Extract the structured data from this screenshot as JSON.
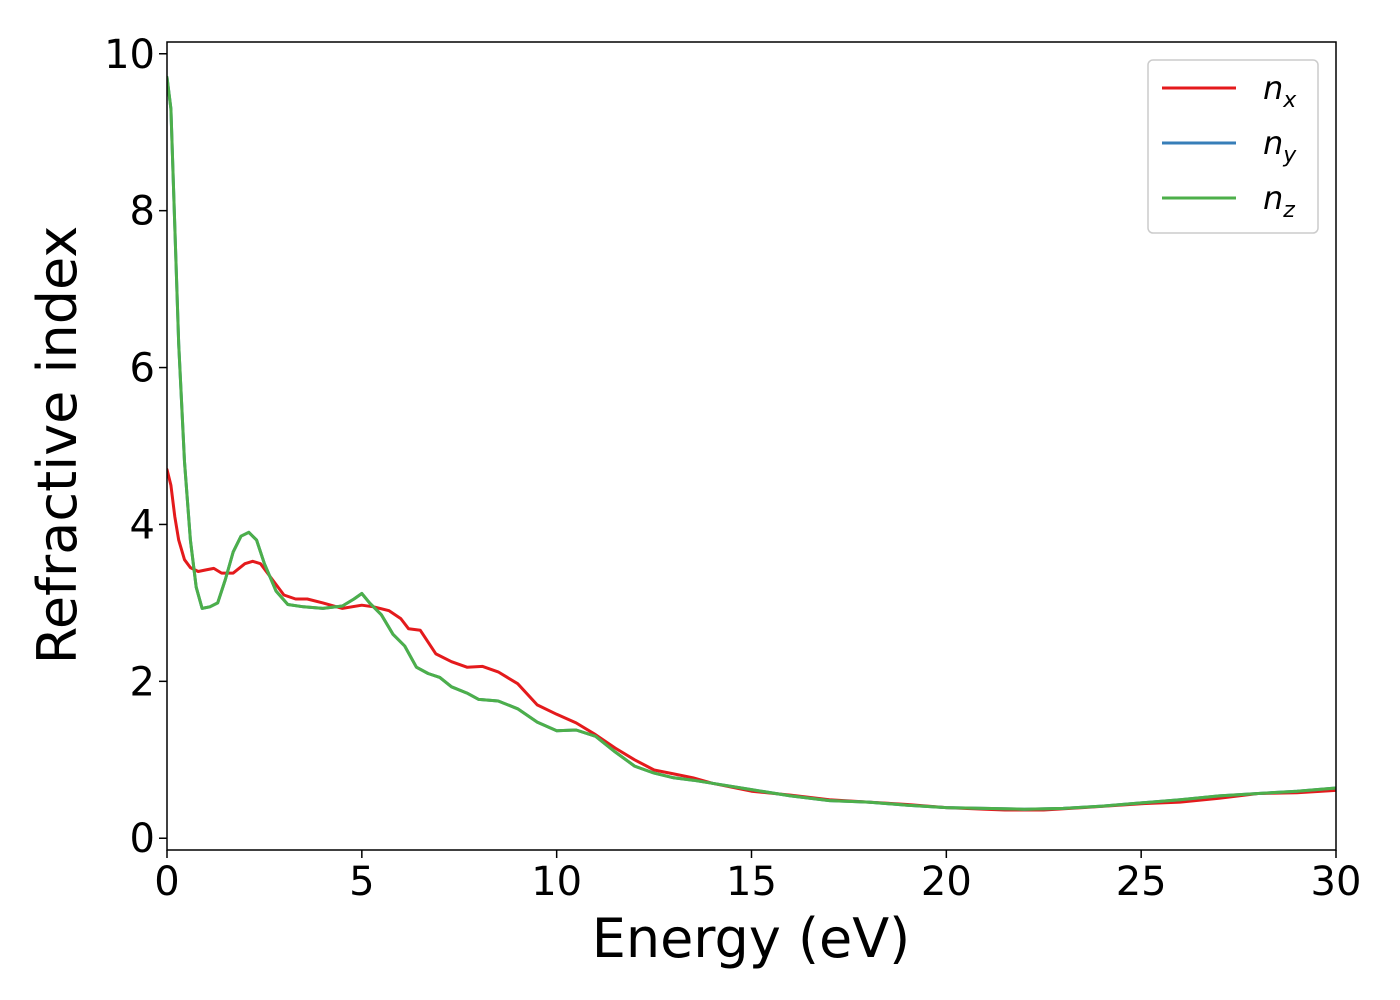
{
  "chart_data": {
    "type": "line",
    "title": "",
    "xlabel": "Energy (eV)",
    "ylabel": "Refractive index",
    "xlim": [
      0,
      30
    ],
    "ylim": [
      -0.15,
      10.15
    ],
    "xticks": [
      0,
      5,
      10,
      15,
      20,
      25,
      30
    ],
    "yticks": [
      0,
      2,
      4,
      6,
      8,
      10
    ],
    "grid": false,
    "legend_position": "top-right",
    "series": [
      {
        "name": "n_x",
        "label_base": "n",
        "label_sub": "x",
        "color": "#e41a1c",
        "points": [
          [
            0,
            4.7
          ],
          [
            0.1,
            4.5
          ],
          [
            0.2,
            4.1
          ],
          [
            0.3,
            3.8
          ],
          [
            0.45,
            3.55
          ],
          [
            0.6,
            3.45
          ],
          [
            0.8,
            3.4
          ],
          [
            1.0,
            3.42
          ],
          [
            1.2,
            3.44
          ],
          [
            1.4,
            3.38
          ],
          [
            1.7,
            3.38
          ],
          [
            2.0,
            3.5
          ],
          [
            2.2,
            3.53
          ],
          [
            2.4,
            3.5
          ],
          [
            2.7,
            3.3
          ],
          [
            3.0,
            3.1
          ],
          [
            3.3,
            3.05
          ],
          [
            3.6,
            3.05
          ],
          [
            4.0,
            3.0
          ],
          [
            4.5,
            2.93
          ],
          [
            5.0,
            2.97
          ],
          [
            5.3,
            2.95
          ],
          [
            5.7,
            2.9
          ],
          [
            6.0,
            2.8
          ],
          [
            6.2,
            2.67
          ],
          [
            6.5,
            2.65
          ],
          [
            6.9,
            2.35
          ],
          [
            7.3,
            2.25
          ],
          [
            7.7,
            2.18
          ],
          [
            8.1,
            2.19
          ],
          [
            8.5,
            2.12
          ],
          [
            9.0,
            1.97
          ],
          [
            9.5,
            1.7
          ],
          [
            10.0,
            1.58
          ],
          [
            10.5,
            1.47
          ],
          [
            11.0,
            1.32
          ],
          [
            11.5,
            1.15
          ],
          [
            12.0,
            1.0
          ],
          [
            12.5,
            0.87
          ],
          [
            13.0,
            0.82
          ],
          [
            13.5,
            0.77
          ],
          [
            14.0,
            0.7
          ],
          [
            15.0,
            0.6
          ],
          [
            16.0,
            0.55
          ],
          [
            17.0,
            0.49
          ],
          [
            18.0,
            0.46
          ],
          [
            19.0,
            0.43
          ],
          [
            20.0,
            0.39
          ],
          [
            21.0,
            0.37
          ],
          [
            21.5,
            0.36
          ],
          [
            22.5,
            0.36
          ],
          [
            23.5,
            0.39
          ],
          [
            25.0,
            0.44
          ],
          [
            26.0,
            0.46
          ],
          [
            27.0,
            0.51
          ],
          [
            28.0,
            0.57
          ],
          [
            29.0,
            0.58
          ],
          [
            30.0,
            0.61
          ]
        ]
      },
      {
        "name": "n_y",
        "label_base": "n",
        "label_sub": "y",
        "color": "#377eb8",
        "points": [
          [
            0,
            9.7
          ],
          [
            0.1,
            9.3
          ],
          [
            0.2,
            7.8
          ],
          [
            0.3,
            6.3
          ],
          [
            0.45,
            4.8
          ],
          [
            0.6,
            3.8
          ],
          [
            0.75,
            3.2
          ],
          [
            0.9,
            2.93
          ],
          [
            1.1,
            2.95
          ],
          [
            1.3,
            3.0
          ],
          [
            1.5,
            3.3
          ],
          [
            1.7,
            3.65
          ],
          [
            1.9,
            3.85
          ],
          [
            2.1,
            3.9
          ],
          [
            2.3,
            3.8
          ],
          [
            2.5,
            3.5
          ],
          [
            2.8,
            3.15
          ],
          [
            3.1,
            2.98
          ],
          [
            3.5,
            2.95
          ],
          [
            4.0,
            2.93
          ],
          [
            4.5,
            2.96
          ],
          [
            4.8,
            3.05
          ],
          [
            5.0,
            3.12
          ],
          [
            5.2,
            3.0
          ],
          [
            5.5,
            2.85
          ],
          [
            5.8,
            2.6
          ],
          [
            6.1,
            2.45
          ],
          [
            6.4,
            2.18
          ],
          [
            6.7,
            2.1
          ],
          [
            7.0,
            2.05
          ],
          [
            7.3,
            1.93
          ],
          [
            7.7,
            1.85
          ],
          [
            8.0,
            1.77
          ],
          [
            8.5,
            1.75
          ],
          [
            9.0,
            1.65
          ],
          [
            9.5,
            1.48
          ],
          [
            10.0,
            1.37
          ],
          [
            10.5,
            1.38
          ],
          [
            11.0,
            1.3
          ],
          [
            11.5,
            1.1
          ],
          [
            12.0,
            0.92
          ],
          [
            12.5,
            0.83
          ],
          [
            13.0,
            0.77
          ],
          [
            13.5,
            0.74
          ],
          [
            14.0,
            0.7
          ],
          [
            14.5,
            0.66
          ],
          [
            15.0,
            0.62
          ],
          [
            16.0,
            0.54
          ],
          [
            17.0,
            0.48
          ],
          [
            18.0,
            0.46
          ],
          [
            19.0,
            0.42
          ],
          [
            20.0,
            0.39
          ],
          [
            21.0,
            0.38
          ],
          [
            22.0,
            0.37
          ],
          [
            23.0,
            0.38
          ],
          [
            24.0,
            0.41
          ],
          [
            25.0,
            0.45
          ],
          [
            26.0,
            0.49
          ],
          [
            27.0,
            0.54
          ],
          [
            28.0,
            0.57
          ],
          [
            29.0,
            0.6
          ],
          [
            30.0,
            0.64
          ]
        ]
      },
      {
        "name": "n_z",
        "label_base": "n",
        "label_sub": "z",
        "color": "#4daf4a",
        "points": [
          [
            0,
            9.7
          ],
          [
            0.1,
            9.3
          ],
          [
            0.2,
            7.8
          ],
          [
            0.3,
            6.3
          ],
          [
            0.45,
            4.8
          ],
          [
            0.6,
            3.8
          ],
          [
            0.75,
            3.2
          ],
          [
            0.9,
            2.93
          ],
          [
            1.1,
            2.95
          ],
          [
            1.3,
            3.0
          ],
          [
            1.5,
            3.3
          ],
          [
            1.7,
            3.65
          ],
          [
            1.9,
            3.85
          ],
          [
            2.1,
            3.9
          ],
          [
            2.3,
            3.8
          ],
          [
            2.5,
            3.5
          ],
          [
            2.8,
            3.15
          ],
          [
            3.1,
            2.98
          ],
          [
            3.5,
            2.95
          ],
          [
            4.0,
            2.93
          ],
          [
            4.5,
            2.96
          ],
          [
            4.8,
            3.05
          ],
          [
            5.0,
            3.12
          ],
          [
            5.2,
            3.0
          ],
          [
            5.5,
            2.85
          ],
          [
            5.8,
            2.6
          ],
          [
            6.1,
            2.45
          ],
          [
            6.4,
            2.18
          ],
          [
            6.7,
            2.1
          ],
          [
            7.0,
            2.05
          ],
          [
            7.3,
            1.93
          ],
          [
            7.7,
            1.85
          ],
          [
            8.0,
            1.77
          ],
          [
            8.5,
            1.75
          ],
          [
            9.0,
            1.65
          ],
          [
            9.5,
            1.48
          ],
          [
            10.0,
            1.37
          ],
          [
            10.5,
            1.38
          ],
          [
            11.0,
            1.3
          ],
          [
            11.5,
            1.1
          ],
          [
            12.0,
            0.92
          ],
          [
            12.5,
            0.83
          ],
          [
            13.0,
            0.77
          ],
          [
            13.5,
            0.74
          ],
          [
            14.0,
            0.7
          ],
          [
            14.5,
            0.66
          ],
          [
            15.0,
            0.62
          ],
          [
            16.0,
            0.54
          ],
          [
            17.0,
            0.48
          ],
          [
            18.0,
            0.46
          ],
          [
            19.0,
            0.42
          ],
          [
            20.0,
            0.39
          ],
          [
            21.0,
            0.38
          ],
          [
            22.0,
            0.37
          ],
          [
            23.0,
            0.38
          ],
          [
            24.0,
            0.41
          ],
          [
            25.0,
            0.45
          ],
          [
            26.0,
            0.49
          ],
          [
            27.0,
            0.54
          ],
          [
            28.0,
            0.57
          ],
          [
            29.0,
            0.6
          ],
          [
            30.0,
            0.64
          ]
        ]
      }
    ]
  }
}
